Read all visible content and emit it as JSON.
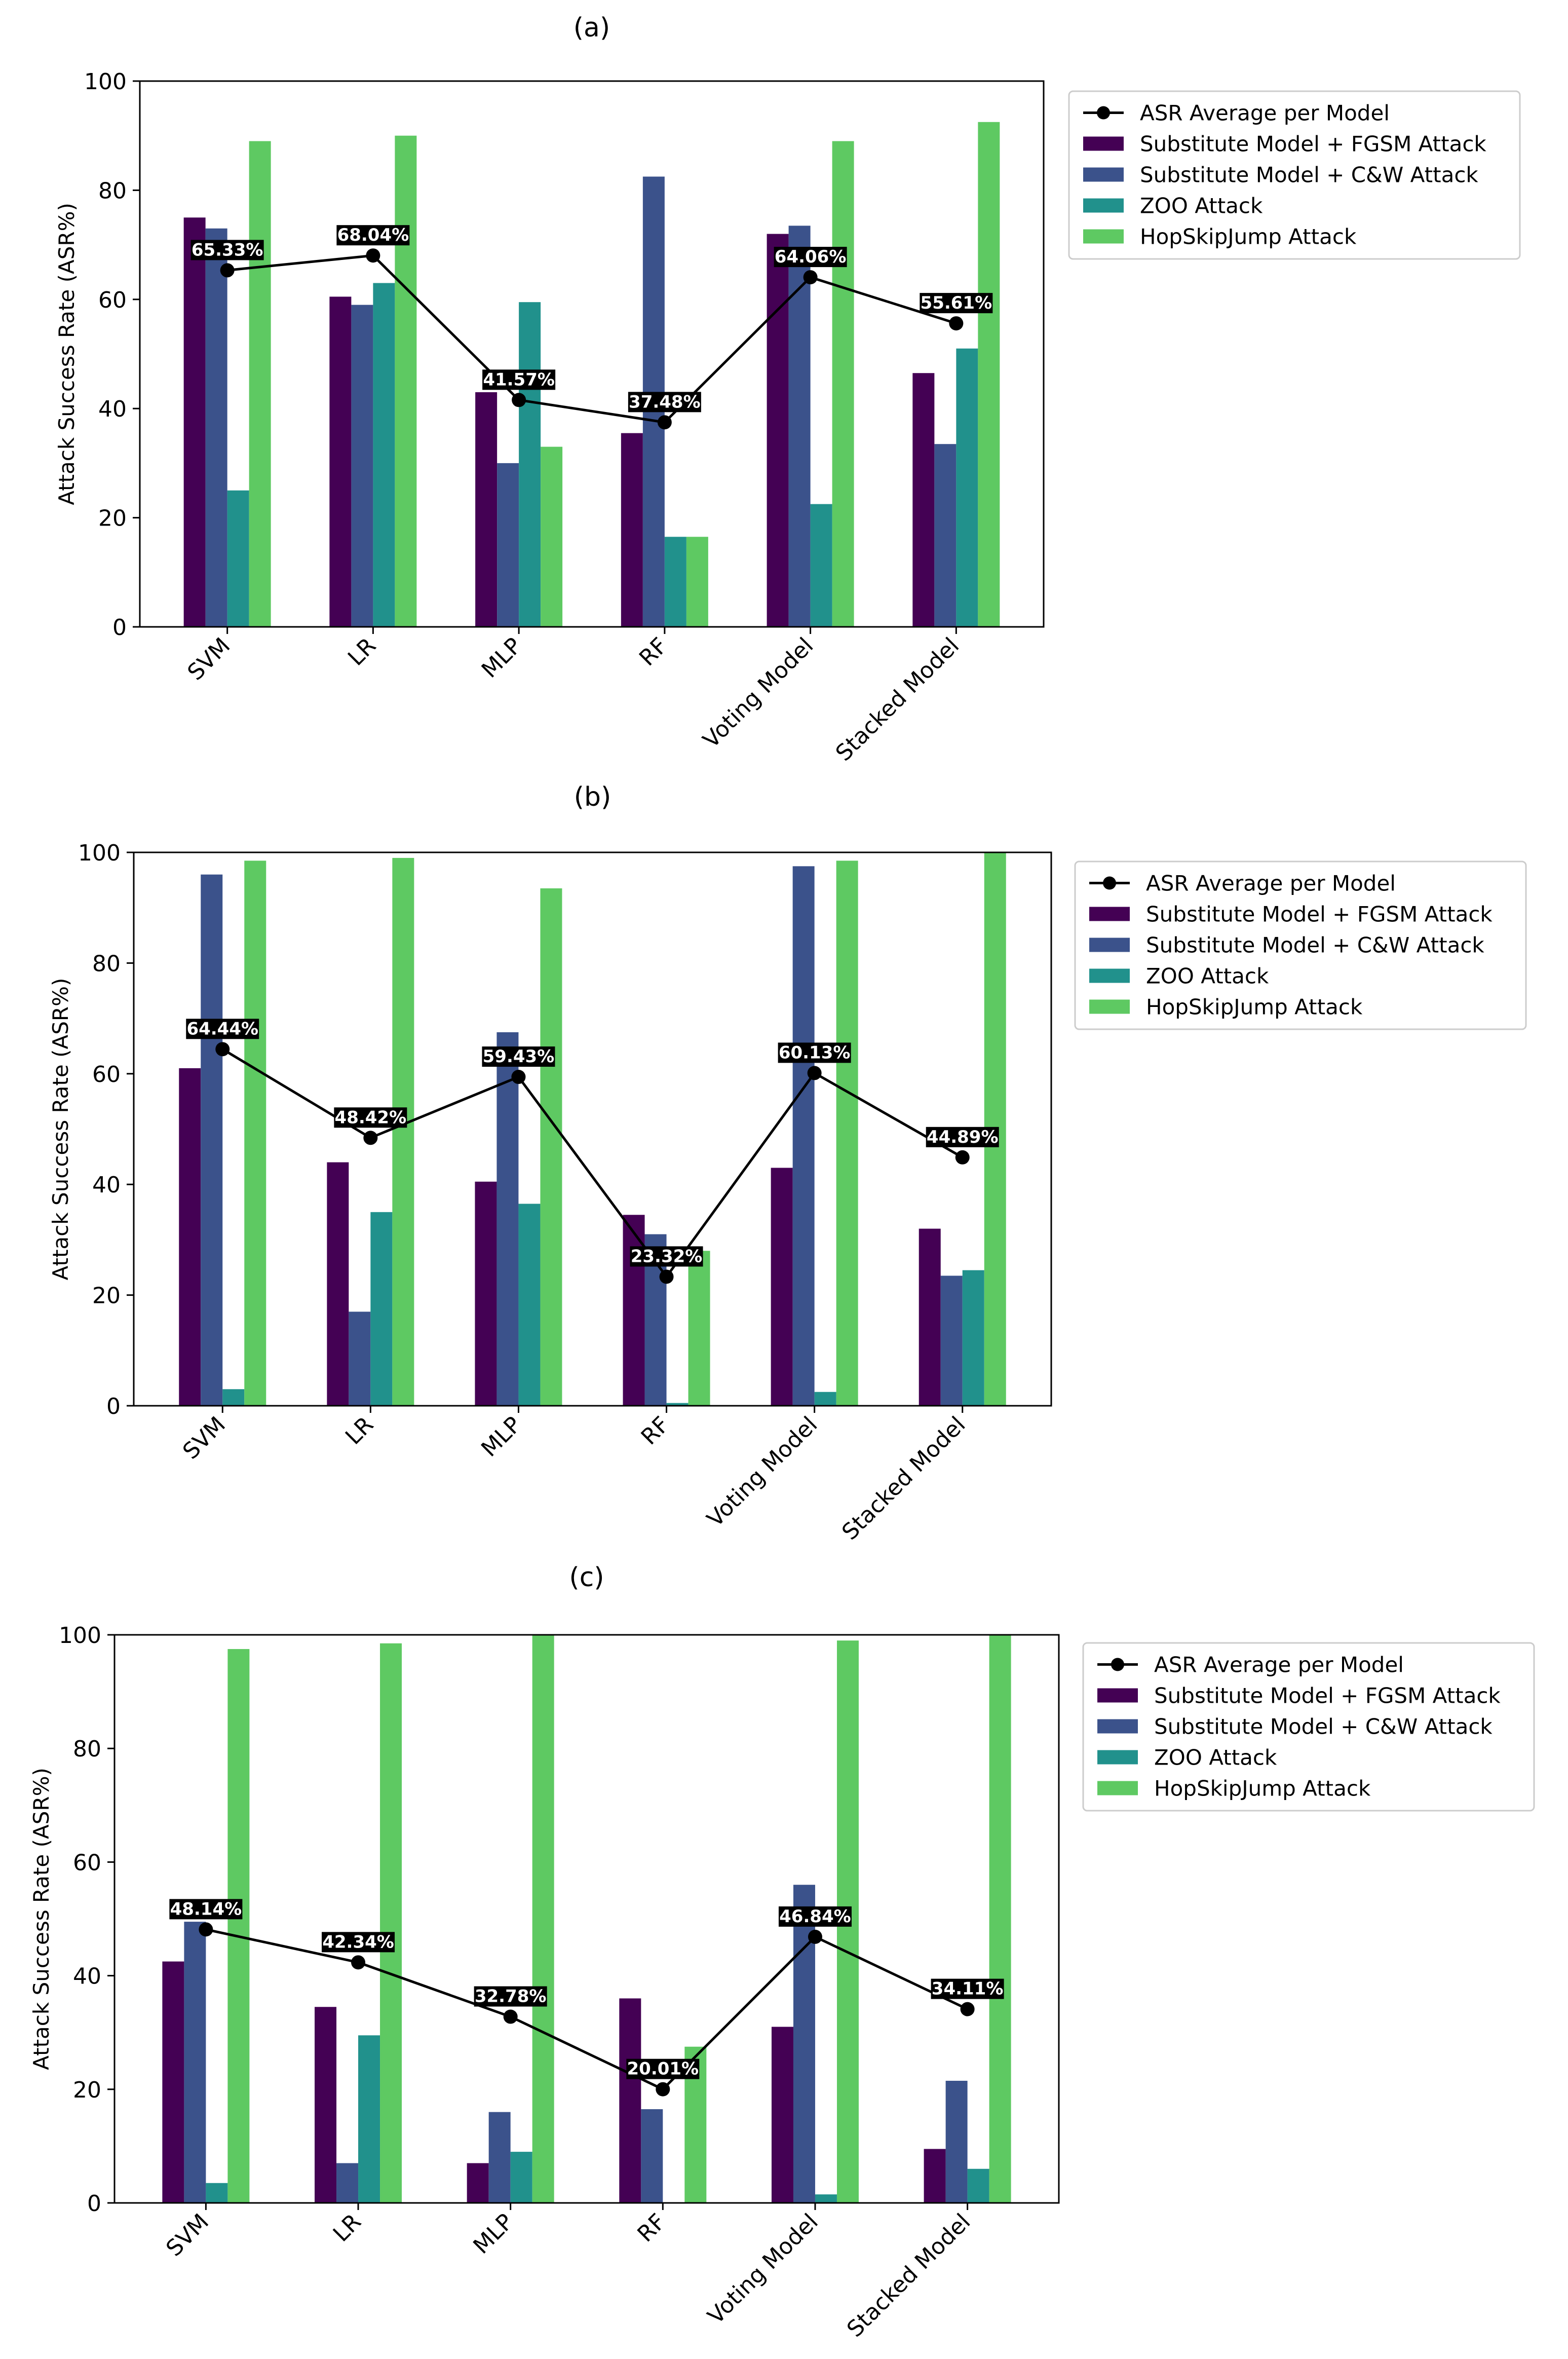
{
  "chart_data": [
    {
      "type": "bar",
      "title": "(a)",
      "xlabel": "",
      "ylabel": "Attack Success Rate (ASR%)",
      "ylim": [
        0,
        100
      ],
      "yticks": [
        0,
        20,
        40,
        60,
        80,
        100
      ],
      "grid": false,
      "legend_position": "outside-right-top",
      "categories": [
        "SVM",
        "LR",
        "MLP",
        "RF",
        "Voting Model",
        "Stacked Model"
      ],
      "series": [
        {
          "name": "Substitute Model + FGSM Attack",
          "color": "#440154",
          "values": [
            75,
            60.5,
            43,
            35.5,
            72,
            46.5
          ]
        },
        {
          "name": "Substitute Model + C&W Attack",
          "color": "#3b528b",
          "values": [
            73,
            59,
            30,
            82.5,
            73.5,
            33.5
          ]
        },
        {
          "name": "ZOO Attack",
          "color": "#21918c",
          "values": [
            25,
            63,
            59.5,
            16.5,
            22.5,
            51
          ]
        },
        {
          "name": "HopSkipJump Attack",
          "color": "#5ec962",
          "values": [
            89,
            90,
            33,
            16.5,
            89,
            92.5
          ]
        }
      ],
      "line": {
        "name": "ASR Average per Model",
        "color": "#000000",
        "values": [
          65.33,
          68.04,
          41.57,
          37.48,
          64.06,
          55.61
        ],
        "labels": [
          "65.33%",
          "68.04%",
          "41.57%",
          "37.48%",
          "64.06%",
          "55.61%"
        ]
      }
    },
    {
      "type": "bar",
      "title": "(b)",
      "xlabel": "",
      "ylabel": "Attack Success Rate (ASR%)",
      "ylim": [
        0,
        100
      ],
      "yticks": [
        0,
        20,
        40,
        60,
        80,
        100
      ],
      "grid": false,
      "legend_position": "outside-right-top",
      "categories": [
        "SVM",
        "LR",
        "MLP",
        "RF",
        "Voting Model",
        "Stacked Model"
      ],
      "series": [
        {
          "name": "Substitute Model + FGSM Attack",
          "color": "#440154",
          "values": [
            61,
            44,
            40.5,
            34.5,
            43,
            32
          ]
        },
        {
          "name": "Substitute Model + C&W Attack",
          "color": "#3b528b",
          "values": [
            96,
            17,
            67.5,
            31,
            97.5,
            23.5
          ]
        },
        {
          "name": "ZOO Attack",
          "color": "#21918c",
          "values": [
            3,
            35,
            36.5,
            0.5,
            2.5,
            24.5
          ]
        },
        {
          "name": "HopSkipJump Attack",
          "color": "#5ec962",
          "values": [
            98.5,
            99,
            93.5,
            28,
            98.5,
            100
          ]
        }
      ],
      "line": {
        "name": "ASR Average per Model",
        "color": "#000000",
        "values": [
          64.44,
          48.42,
          59.43,
          23.32,
          60.13,
          44.89
        ],
        "labels": [
          "64.44%",
          "48.42%",
          "59.43%",
          "23.32%",
          "60.13%",
          "44.89%"
        ]
      }
    },
    {
      "type": "bar",
      "title": "(c)",
      "xlabel": "",
      "ylabel": "Attack Success Rate (ASR%)",
      "ylim": [
        0,
        100
      ],
      "yticks": [
        0,
        20,
        40,
        60,
        80,
        100
      ],
      "grid": false,
      "legend_position": "outside-right-top",
      "categories": [
        "SVM",
        "LR",
        "MLP",
        "RF",
        "Voting Model",
        "Stacked Model"
      ],
      "series": [
        {
          "name": "Substitute Model + FGSM Attack",
          "color": "#440154",
          "values": [
            42.5,
            34.5,
            7,
            36,
            31,
            9.5
          ]
        },
        {
          "name": "Substitute Model + C&W Attack",
          "color": "#3b528b",
          "values": [
            49.5,
            7,
            16,
            16.5,
            56,
            21.5
          ]
        },
        {
          "name": "ZOO Attack",
          "color": "#21918c",
          "values": [
            3.5,
            29.5,
            9,
            0,
            1.5,
            6
          ]
        },
        {
          "name": "HopSkipJump Attack",
          "color": "#5ec962",
          "values": [
            97.5,
            98.5,
            100,
            27.5,
            99,
            100
          ]
        }
      ],
      "line": {
        "name": "ASR Average per Model",
        "color": "#000000",
        "values": [
          48.14,
          42.34,
          32.78,
          20.01,
          46.84,
          34.11
        ],
        "labels": [
          "48.14%",
          "42.34%",
          "32.78%",
          "20.01%",
          "46.84%",
          "34.11%"
        ]
      }
    }
  ]
}
